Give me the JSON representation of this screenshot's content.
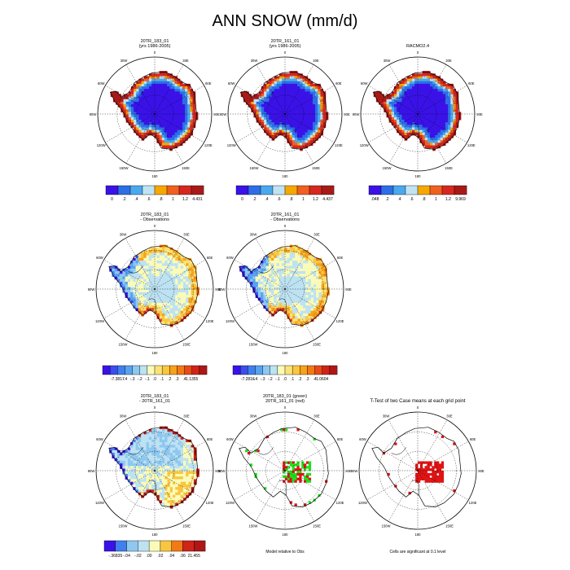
{
  "title": "ANN SNOW (mm/d)",
  "colors": {
    "seq10": [
      "#3a12e8",
      "#2d6ee6",
      "#4aa8ee",
      "#bfe3f2",
      "#f5a800",
      "#f0601e",
      "#d62820",
      "#a81a18"
    ],
    "div16": [
      "#3a12e8",
      "#3c4cef",
      "#3f7fee",
      "#57a3ee",
      "#8ec8f0",
      "#bde2f2",
      "#fbfbb8",
      "#fbe27a",
      "#f9c640",
      "#f6a21a",
      "#f27a14",
      "#e84a18",
      "#d12418",
      "#b01616"
    ],
    "green": "#1ee01e",
    "red": "#e01414"
  },
  "panels": [
    {
      "id": "p1",
      "titles": [
        "20TR_183_01",
        "(yrs 1986-2005)"
      ],
      "type": "seq",
      "colorbar": {
        "labels": [
          "0",
          ".2",
          ".4",
          ".6",
          ".8",
          "1",
          "1.2",
          "4.431"
        ],
        "colors": [
          "#3a12e8",
          "#2d6ee6",
          "#4aa8ee",
          "#bfe3f2",
          "#f5a800",
          "#f0601e",
          "#d62820",
          "#a81a18"
        ]
      }
    },
    {
      "id": "p2",
      "titles": [
        "20TR_161_01",
        "(yrs 1986-2005)"
      ],
      "type": "seq",
      "colorbar": {
        "labels": [
          "0",
          ".2",
          ".4",
          ".6",
          ".8",
          "1",
          "1.2",
          "4.437"
        ],
        "colors": [
          "#3a12e8",
          "#2d6ee6",
          "#4aa8ee",
          "#bfe3f2",
          "#f5a800",
          "#f0601e",
          "#d62820",
          "#a81a18"
        ]
      }
    },
    {
      "id": "p3",
      "titles": [
        "RACMO2.4"
      ],
      "type": "seq",
      "colorbar": {
        "labels": [
          ".048",
          ".2",
          ".4",
          ".6",
          ".8",
          "1",
          "1.2",
          "9.969"
        ],
        "colors": [
          "#3a12e8",
          "#2d6ee6",
          "#4aa8ee",
          "#bfe3f2",
          "#f5a800",
          "#f0601e",
          "#d62820",
          "#a81a18"
        ]
      }
    },
    {
      "id": "p4",
      "titles": [
        "20TR_183_01",
        "- Observations"
      ],
      "type": "div",
      "colorbar": {
        "labels": [
          "-7.3817",
          "-.4",
          "-.3",
          "-.2",
          "-.1",
          ".0",
          ".1",
          ".2",
          ".3",
          ".4",
          "1.1355"
        ],
        "colors": [
          "#3a12e8",
          "#3c4cef",
          "#3f7fee",
          "#57a3ee",
          "#8ec8f0",
          "#bde2f2",
          "#fbfbb8",
          "#fbe27a",
          "#f9c640",
          "#f6a21a",
          "#f27a14",
          "#e84a18",
          "#d12418",
          "#b01616"
        ]
      }
    },
    {
      "id": "p5",
      "titles": [
        "20TR_161_01",
        "- Observations"
      ],
      "type": "div",
      "colorbar": {
        "labels": [
          "-7.2816",
          "-.4",
          "-.3",
          "-.2",
          "-.1",
          ".0",
          ".1",
          ".2",
          ".3",
          ".4",
          "1.0604"
        ],
        "colors": [
          "#3a12e8",
          "#3c4cef",
          "#3f7fee",
          "#57a3ee",
          "#8ec8f0",
          "#bde2f2",
          "#fbfbb8",
          "#fbe27a",
          "#f9c640",
          "#f6a21a",
          "#f27a14",
          "#e84a18",
          "#d12418",
          "#b01616"
        ]
      }
    },
    {
      "id": "p7",
      "titles": [
        "20TR_183_01",
        "- 20TR_161_01"
      ],
      "type": "div2",
      "colorbar": {
        "labels": [
          "-.36835",
          "-.04",
          "-.02",
          ".00",
          ".02",
          ".04",
          ".06",
          "21.455"
        ],
        "colors": [
          "#3a12e8",
          "#3f7fee",
          "#8ec8f0",
          "#bde2f2",
          "#fbfbb8",
          "#f9c640",
          "#f27a14",
          "#d12418",
          "#b01616"
        ]
      }
    },
    {
      "id": "p8",
      "titles": [
        "20TR_183_01 (green)",
        "20TR_161_01 (red)"
      ],
      "type": "sig2",
      "caption": "Model relative to Obs"
    },
    {
      "id": "p9",
      "titles": [
        "T-Test of two Case means at each grid point"
      ],
      "type": "sig1",
      "caption": "Cells are significant at 0.1 level"
    }
  ],
  "lon_labels": {
    "top": "0",
    "upper_left": "30W",
    "upper_right": "30E",
    "left_upper": "60W",
    "right_upper": "60E",
    "left": "90W",
    "right": "90E",
    "left_lower": "120W",
    "right_lower": "120E",
    "lower_left": "150W",
    "lower_right": "150E",
    "bottom": "180"
  }
}
